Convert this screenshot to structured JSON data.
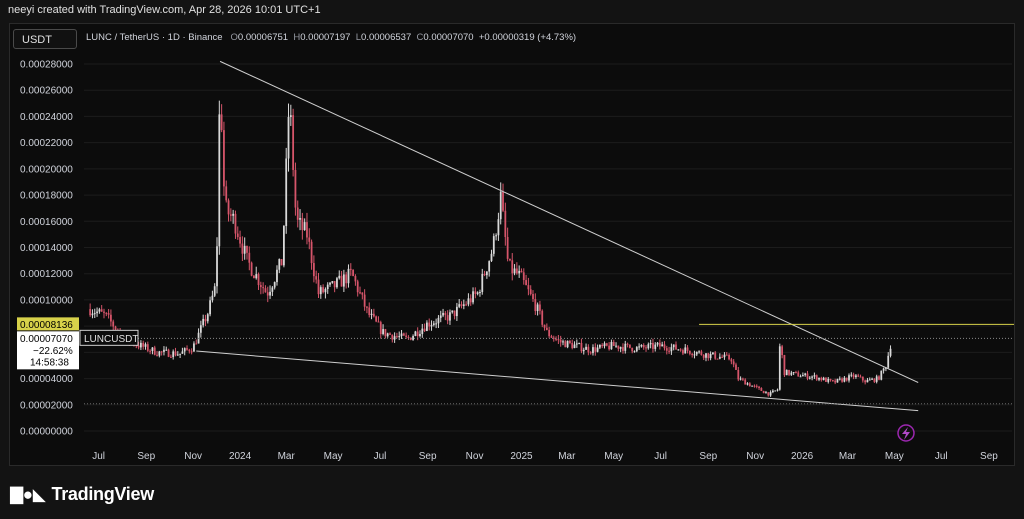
{
  "header": {
    "credit": "neeyi created with TradingView.com, Apr 28, 2026 10:01 UTC+1"
  },
  "currency_button": "USDT",
  "legend": {
    "symbol": "LUNC / TetherUS · 1D · Binance",
    "open_label": "O",
    "open": "0.00006751",
    "high_label": "H",
    "high": "0.00007197",
    "low_label": "L",
    "low": "0.00006537",
    "close_label": "C",
    "close": "0.00007070",
    "change": "+0.00000319 (+4.73%)"
  },
  "price_labels": {
    "level": "0.00008136",
    "current": "0.00007070",
    "change_pct": "−22.62%",
    "countdown": "14:58:38",
    "symbol_tag": "LUNCUSDT"
  },
  "footer": {
    "brand": "TradingView"
  },
  "colors": {
    "background": "#0c0c0c",
    "up": "#d9d9d9",
    "down": "#d6556a",
    "trendline": "#cfcfcf",
    "level_line": "#d8d24a",
    "grid": "#1c1c1c"
  },
  "chart_data": {
    "type": "candlestick",
    "title": "LUNC / TetherUS · 1D · Binance",
    "ylim": [
      0,
      0.00029
    ],
    "yticks": [
      0,
      2e-05,
      4e-05,
      6e-05,
      8e-05,
      0.0001,
      0.00012,
      0.00014,
      0.00016,
      0.00018,
      0.0002,
      0.00022,
      0.00024,
      0.00026,
      0.00028
    ],
    "ytick_labels": [
      "0.00000000",
      "0.00002000",
      "0.00004000",
      "0.00006000",
      "0.00008000",
      "0.00010000",
      "0.00012000",
      "0.00014000",
      "0.00016000",
      "0.00018000",
      "0.00020000",
      "0.00022000",
      "0.00024000",
      "0.00026000",
      "0.00028000"
    ],
    "xticks": [
      {
        "label": "Jul",
        "date": "2023-07-01"
      },
      {
        "label": "Sep",
        "date": "2023-09-01"
      },
      {
        "label": "Nov",
        "date": "2023-11-01"
      },
      {
        "label": "2024",
        "date": "2024-01-01"
      },
      {
        "label": "Mar",
        "date": "2024-03-01"
      },
      {
        "label": "May",
        "date": "2024-05-01"
      },
      {
        "label": "Jul",
        "date": "2024-07-01"
      },
      {
        "label": "Sep",
        "date": "2024-09-01"
      },
      {
        "label": "Nov",
        "date": "2024-11-01"
      },
      {
        "label": "2025",
        "date": "2025-01-01"
      },
      {
        "label": "Mar",
        "date": "2025-03-01"
      },
      {
        "label": "May",
        "date": "2025-05-01"
      },
      {
        "label": "Jul",
        "date": "2025-07-01"
      },
      {
        "label": "Sep",
        "date": "2025-09-01"
      },
      {
        "label": "Nov",
        "date": "2025-11-01"
      },
      {
        "label": "2026",
        "date": "2026-01-01"
      },
      {
        "label": "Mar",
        "date": "2026-03-01"
      },
      {
        "label": "May",
        "date": "2026-05-01"
      },
      {
        "label": "Jul",
        "date": "2026-07-01"
      },
      {
        "label": "Sep",
        "date": "2026-09-01"
      }
    ],
    "price_path": [
      [
        "2023-06-20",
        9.3e-05
      ],
      [
        "2023-07-10",
        8.8e-05
      ],
      [
        "2023-08-01",
        7.2e-05
      ],
      [
        "2023-08-20",
        6.6e-05
      ],
      [
        "2023-09-15",
        6e-05
      ],
      [
        "2023-10-15",
        5.9e-05
      ],
      [
        "2023-11-01",
        6.4e-05
      ],
      [
        "2023-11-20",
        9e-05
      ],
      [
        "2023-12-01",
        0.000112
      ],
      [
        "2023-12-06",
        0.00027
      ],
      [
        "2023-12-12",
        0.00017
      ],
      [
        "2023-12-25",
        0.00016
      ],
      [
        "2024-01-10",
        0.00013
      ],
      [
        "2024-02-05",
        0.000105
      ],
      [
        "2024-02-25",
        0.00013
      ],
      [
        "2024-03-05",
        0.000255
      ],
      [
        "2024-03-14",
        0.00016
      ],
      [
        "2024-03-28",
        0.00015
      ],
      [
        "2024-04-12",
        0.000105
      ],
      [
        "2024-05-01",
        0.00011
      ],
      [
        "2024-05-25",
        0.00012
      ],
      [
        "2024-06-15",
        9e-05
      ],
      [
        "2024-07-05",
        7.5e-05
      ],
      [
        "2024-08-05",
        7e-05
      ],
      [
        "2024-09-01",
        8.2e-05
      ],
      [
        "2024-10-01",
        8.8e-05
      ],
      [
        "2024-11-05",
        0.000105
      ],
      [
        "2024-11-25",
        0.00014
      ],
      [
        "2024-12-05",
        0.000178
      ],
      [
        "2024-12-15",
        0.000125
      ],
      [
        "2024-12-30",
        0.000118
      ],
      [
        "2025-01-20",
        9.5e-05
      ],
      [
        "2025-02-03",
        7.5e-05
      ],
      [
        "2025-02-20",
        6.8e-05
      ],
      [
        "2025-04-01",
        6.2e-05
      ],
      [
        "2025-05-01",
        6.5e-05
      ],
      [
        "2025-06-01",
        6.3e-05
      ],
      [
        "2025-07-01",
        6.5e-05
      ],
      [
        "2025-08-01",
        6.2e-05
      ],
      [
        "2025-09-01",
        5.8e-05
      ],
      [
        "2025-10-01",
        5.5e-05
      ],
      [
        "2025-10-10",
        4e-05
      ],
      [
        "2025-11-05",
        3.2e-05
      ],
      [
        "2025-11-20",
        2.8e-05
      ],
      [
        "2025-12-01",
        3.2e-05
      ],
      [
        "2025-12-04",
        8e-05
      ],
      [
        "2025-12-07",
        4.5e-05
      ],
      [
        "2025-12-25",
        4.3e-05
      ],
      [
        "2026-01-20",
        4.1e-05
      ],
      [
        "2026-02-10",
        3.7e-05
      ],
      [
        "2026-03-10",
        4.2e-05
      ],
      [
        "2026-03-25",
        3.8e-05
      ],
      [
        "2026-04-10",
        4e-05
      ],
      [
        "2026-04-20",
        5e-05
      ],
      [
        "2026-04-28",
        7.1e-05
      ]
    ],
    "annotations": {
      "horizontal_level": 8.136e-05,
      "horizontal_level_start": "2025-08-20",
      "last_price": 7.07e-05,
      "lower_dotted_level": 2.08e-05,
      "falling_wedge": {
        "upper": [
          [
            "2023-12-06",
            0.000282
          ],
          [
            "2026-06-01",
            3.7e-05
          ]
        ],
        "lower": [
          [
            "2023-11-05",
            6.1e-05
          ],
          [
            "2026-06-01",
            1.55e-05
          ]
        ]
      }
    }
  }
}
